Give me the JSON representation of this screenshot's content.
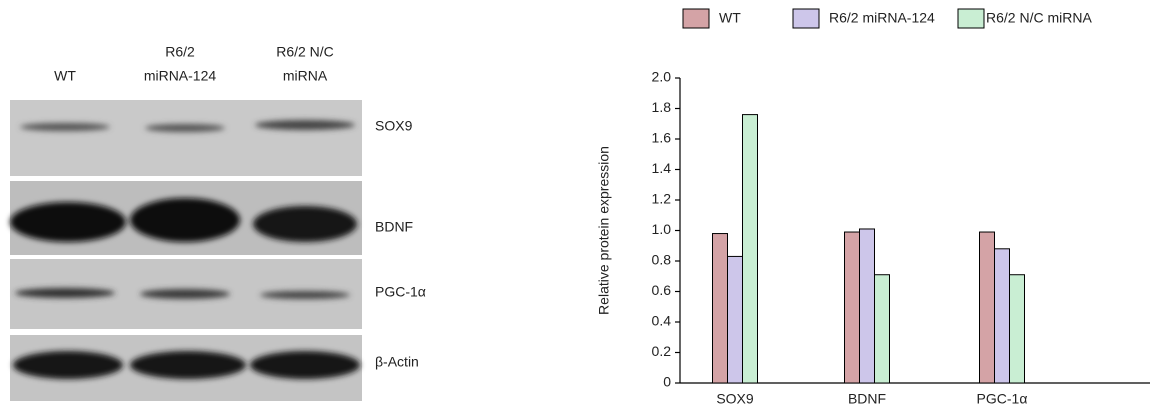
{
  "blot": {
    "lanes": [
      [
        "WT"
      ],
      [
        "R6/2",
        "miRNA-124"
      ],
      [
        "R6/2 N/C",
        "miRNA"
      ]
    ],
    "bands": [
      "SOX9",
      "BDNF",
      "PGC-1α",
      "β-Actin"
    ]
  },
  "chart_data": {
    "type": "bar",
    "y_label": "Relative protein expression",
    "categories": [
      "SOX9",
      "BDNF",
      "PGC-1α"
    ],
    "series": [
      {
        "name": "WT",
        "color": "#d4a3a6",
        "values": [
          0.98,
          0.99,
          0.99
        ]
      },
      {
        "name": "R6/2 miRNA-124",
        "color": "#cdc6ea",
        "values": [
          0.83,
          1.01,
          0.88
        ]
      },
      {
        "name": "R6/2 N/C miRNA",
        "color": "#c9eed3",
        "values": [
          1.76,
          0.71,
          0.71
        ]
      }
    ],
    "ylim": [
      0,
      2
    ],
    "yticks": [
      0,
      0.2,
      0.4,
      0.6,
      0.8,
      {
        "value": 1,
        "label": "1.0"
      },
      1.2,
      1.4,
      1.6,
      1.8,
      {
        "value": 2,
        "label": "2.0"
      }
    ],
    "legend": "top"
  }
}
